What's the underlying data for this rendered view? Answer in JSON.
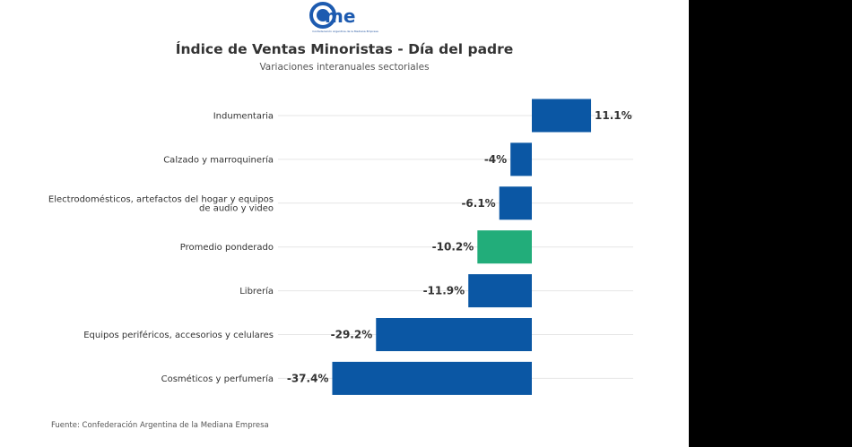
{
  "header": {
    "logo_text": "came",
    "logo_subtext": "Confederación Argentina de la Mediana Empresa",
    "title": "Índice de Ventas Minoristas - Día del padre",
    "subtitle": "Variaciones interanuales sectoriales"
  },
  "footer": {
    "source": "Fuente: Confederación Argentina de la Mediana Empresa"
  },
  "chart_data": {
    "type": "bar",
    "orientation": "horizontal",
    "title": "Índice de Ventas Minoristas - Día del padre",
    "subtitle": "Variaciones interanuales sectoriales",
    "categories": [
      [
        "Indumentaria"
      ],
      [
        "Calzado y marroquinería"
      ],
      [
        "Electrodomésticos, artefactos del hogar y equipos",
        "de audio y video"
      ],
      [
        "Promedio ponderado"
      ],
      [
        "Librería"
      ],
      [
        "Equipos periféricos, accesorios y celulares"
      ],
      [
        "Cosméticos y perfumería"
      ]
    ],
    "values": [
      11.1,
      -4,
      -6.1,
      -10.2,
      -11.9,
      -29.2,
      -37.4
    ],
    "labels": [
      "11.1%",
      "-4%",
      "-6.1%",
      "-10.2%",
      "-11.9%",
      "-29.2%",
      "-37.4%"
    ],
    "colors": [
      "#0b57a4",
      "#0b57a4",
      "#0b57a4",
      "#22ad7a",
      "#0b57a4",
      "#0b57a4",
      "#0b57a4"
    ],
    "xlim": [
      -40,
      20
    ],
    "grid": true,
    "legend": "none"
  }
}
